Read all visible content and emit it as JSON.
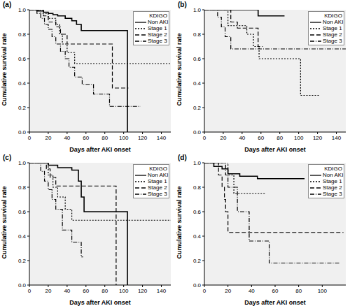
{
  "chart_data": [
    {
      "type": "step",
      "title": "(a)",
      "x_label": "Days after AKI onset",
      "y_label": "Cumulative survival rate",
      "legend_title": "KDIGO",
      "legend": "upper right",
      "grid": false,
      "xlim": [
        0,
        150
      ],
      "xticks": [
        0,
        20,
        40,
        60,
        80,
        100,
        120,
        140
      ],
      "ylim": [
        0,
        1
      ],
      "yticks": [
        {
          "value": 0,
          "label": "0.0"
        },
        {
          "value": 0.2,
          "label": "0.2"
        },
        {
          "value": 0.4,
          "label": "0.4"
        },
        {
          "value": 0.6,
          "label": "0.6"
        },
        {
          "value": 0.8,
          "label": "0.8"
        },
        {
          "value": 1,
          "label": "1.0"
        }
      ],
      "series": [
        {
          "name": "Non AKI",
          "color": "#000000",
          "line_style": "solid",
          "x": [
            0,
            8,
            10,
            15,
            20,
            25,
            30,
            38,
            45,
            50,
            55,
            103,
            104
          ],
          "values": [
            1,
            0.99,
            0.99,
            0.98,
            0.97,
            0.96,
            0.95,
            0.93,
            0.91,
            0.88,
            0.83,
            0.83,
            0
          ]
        },
        {
          "name": "Stage 1",
          "color": "#000000",
          "line_style": "dotted",
          "x": [
            0,
            12,
            20,
            28,
            32,
            35,
            40,
            48,
            150
          ],
          "values": [
            1,
            0.97,
            0.93,
            0.88,
            0.8,
            0.72,
            0.65,
            0.56,
            0.56
          ]
        },
        {
          "name": "Stage 2",
          "color": "#000000",
          "line_style": "dashed",
          "x": [
            0,
            15,
            20,
            28,
            33,
            40,
            88,
            105
          ],
          "values": [
            1,
            0.95,
            0.9,
            0.86,
            0.8,
            0.72,
            0.36,
            0.36
          ]
        },
        {
          "name": "Stage 3",
          "color": "#000000",
          "line_style": "dashdot",
          "x": [
            0,
            8,
            12,
            16,
            20,
            24,
            28,
            33,
            38,
            42,
            48,
            56,
            68,
            85,
            118
          ],
          "values": [
            1,
            0.97,
            0.93,
            0.88,
            0.84,
            0.78,
            0.72,
            0.66,
            0.6,
            0.53,
            0.45,
            0.39,
            0.31,
            0.21,
            0.21
          ]
        }
      ]
    },
    {
      "type": "step",
      "title": "(b)",
      "x_label": "Days after AKI onset",
      "y_label": "Cumulative survival rate",
      "legend_title": "KDIGO",
      "legend": "upper right",
      "grid": false,
      "xlim": [
        0,
        150
      ],
      "xticks": [
        0,
        20,
        40,
        60,
        80,
        100,
        120,
        140
      ],
      "ylim": [
        0,
        1
      ],
      "yticks": [
        {
          "value": 0,
          "label": "0.0"
        },
        {
          "value": 0.2,
          "label": "0.2"
        },
        {
          "value": 0.4,
          "label": "0.4"
        },
        {
          "value": 0.6,
          "label": "0.6"
        },
        {
          "value": 0.8,
          "label": "0.8"
        },
        {
          "value": 1,
          "label": "1.0"
        }
      ],
      "series": [
        {
          "name": "Non AKI",
          "color": "#000000",
          "line_style": "solid",
          "x": [
            0,
            57,
            85
          ],
          "values": [
            1,
            0.95,
            0.95
          ]
        },
        {
          "name": "Stage 1",
          "color": "#000000",
          "line_style": "dotted",
          "x": [
            0,
            25,
            45,
            52,
            58,
            102,
            122
          ],
          "values": [
            1,
            0.87,
            0.8,
            0.7,
            0.6,
            0.3,
            0.3
          ]
        },
        {
          "name": "Stage 2",
          "color": "#000000",
          "line_style": "dashed",
          "x": [
            0,
            28,
            35,
            57,
            62
          ],
          "values": [
            1,
            0.9,
            0.85,
            0.7,
            0.7
          ]
        },
        {
          "name": "Stage 3",
          "color": "#000000",
          "line_style": "dashdot",
          "x": [
            0,
            14,
            18,
            22,
            28,
            150
          ],
          "values": [
            1,
            0.94,
            0.86,
            0.78,
            0.68,
            0.68
          ]
        }
      ]
    },
    {
      "type": "step",
      "title": "(c)",
      "x_label": "Days after AKI onset",
      "y_label": "Cumulative survival rate",
      "legend_title": "KDIGO",
      "legend": "upper right",
      "grid": false,
      "xlim": [
        0,
        150
      ],
      "xticks": [
        0,
        20,
        40,
        60,
        80,
        100,
        120,
        140
      ],
      "ylim": [
        0,
        1
      ],
      "yticks": [
        {
          "value": 0,
          "label": "0.0"
        },
        {
          "value": 0.2,
          "label": "0.2"
        },
        {
          "value": 0.4,
          "label": "0.4"
        },
        {
          "value": 0.6,
          "label": "0.6"
        },
        {
          "value": 0.8,
          "label": "0.8"
        },
        {
          "value": 1,
          "label": "1.0"
        }
      ],
      "series": [
        {
          "name": "Non AKI",
          "color": "#000000",
          "line_style": "solid",
          "x": [
            0,
            20,
            30,
            45,
            52,
            55,
            58,
            104
          ],
          "values": [
            1,
            0.98,
            0.96,
            0.94,
            0.85,
            0.72,
            0.6,
            0
          ]
        },
        {
          "name": "Stage 1",
          "color": "#000000",
          "line_style": "dotted",
          "x": [
            0,
            20,
            25,
            30,
            38,
            45,
            150
          ],
          "values": [
            1,
            0.9,
            0.8,
            0.72,
            0.62,
            0.53,
            0.53
          ]
        },
        {
          "name": "Stage 2",
          "color": "#000000",
          "line_style": "dashed",
          "x": [
            0,
            18,
            22,
            28,
            92
          ],
          "values": [
            1,
            0.95,
            0.88,
            0.81,
            0
          ]
        },
        {
          "name": "Stage 3",
          "color": "#000000",
          "line_style": "dashdot",
          "x": [
            0,
            12,
            16,
            20,
            24,
            28,
            35,
            45,
            55,
            57
          ],
          "values": [
            1,
            0.93,
            0.85,
            0.78,
            0.7,
            0.62,
            0.45,
            0.35,
            0.23,
            0.23
          ]
        }
      ]
    },
    {
      "type": "step",
      "title": "(d)",
      "x_label": "Days after AKI onset",
      "y_label": "Cumulative survival rate",
      "legend_title": "KDIGO",
      "legend": "upper right",
      "grid": false,
      "xlim": [
        0,
        120
      ],
      "xticks": [
        0,
        20,
        40,
        60,
        80,
        100
      ],
      "ylim": [
        0,
        1
      ],
      "yticks": [
        {
          "value": 0,
          "label": "0.0"
        },
        {
          "value": 0.2,
          "label": "0.2"
        },
        {
          "value": 0.4,
          "label": "0.4"
        },
        {
          "value": 0.6,
          "label": "0.6"
        },
        {
          "value": 0.8,
          "label": "0.8"
        },
        {
          "value": 1,
          "label": "1.0"
        }
      ],
      "series": [
        {
          "name": "Non AKI",
          "color": "#000000",
          "line_style": "solid",
          "x": [
            0,
            8,
            15,
            20,
            30,
            45,
            85
          ],
          "values": [
            1,
            0.97,
            0.95,
            0.91,
            0.89,
            0.87,
            0.87
          ]
        },
        {
          "name": "Stage 1",
          "color": "#000000",
          "line_style": "dotted",
          "x": [
            0,
            20,
            25,
            52
          ],
          "values": [
            1,
            0.9,
            0.75,
            0.75
          ]
        },
        {
          "name": "Stage 2",
          "color": "#000000",
          "line_style": "dashed",
          "x": [
            0,
            12,
            15,
            17,
            18,
            20,
            118
          ],
          "values": [
            1,
            0.9,
            0.8,
            0.7,
            0.6,
            0.43,
            0.43
          ]
        },
        {
          "name": "Stage 3",
          "color": "#000000",
          "line_style": "dashdot",
          "x": [
            0,
            18,
            20,
            28,
            38,
            55,
            115
          ],
          "values": [
            1,
            0.9,
            0.8,
            0.6,
            0.36,
            0.18,
            0.18
          ]
        }
      ]
    }
  ]
}
